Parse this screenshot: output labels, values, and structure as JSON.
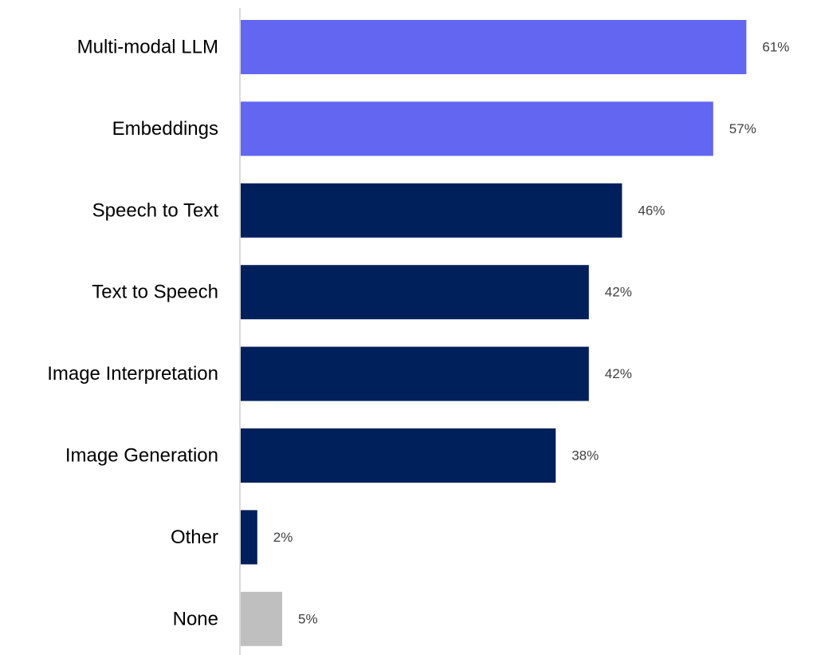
{
  "chart_data": {
    "type": "bar",
    "orientation": "horizontal",
    "categories": [
      "Multi-modal LLM",
      "Embeddings",
      "Speech to Text",
      "Text to Speech",
      "Image Interpretation",
      "Image Generation",
      "Other",
      "None"
    ],
    "values": [
      61,
      57,
      46,
      42,
      42,
      38,
      2,
      5
    ],
    "value_labels": [
      "61%",
      "57%",
      "46%",
      "42%",
      "42%",
      "38%",
      "2%",
      "5%"
    ],
    "unit": "%",
    "title": "",
    "xlabel": "",
    "ylabel": "",
    "xlim": [
      0,
      100
    ],
    "grid": false,
    "legend": "none",
    "colors": [
      "#6366f1",
      "#6366f1",
      "#00205b",
      "#00205b",
      "#00205b",
      "#00205b",
      "#00205b",
      "#bfbfbf"
    ],
    "axis_color": "#d9d9d9"
  }
}
